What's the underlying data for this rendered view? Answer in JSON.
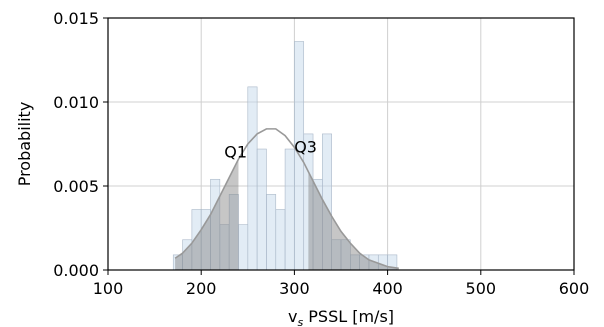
{
  "chart_data": {
    "type": "bar",
    "xlabel_main": "v",
    "xlabel_sub": "s",
    "xlabel_rest": " PSSL [m/s]",
    "ylabel": "Probability",
    "xlim": [
      100,
      600
    ],
    "ylim": [
      0,
      0.015
    ],
    "xticks": [
      100,
      200,
      300,
      400,
      500,
      600
    ],
    "xtick_labels": [
      "100",
      "200",
      "300",
      "400",
      "500",
      "600"
    ],
    "yticks": [
      0,
      0.005,
      0.01,
      0.015
    ],
    "ytick_labels": [
      "0.000",
      "0.005",
      "0.010",
      "0.015"
    ],
    "grid": true,
    "bin_width": 10,
    "histogram": {
      "bin_left_edges": [
        170,
        180,
        190,
        200,
        210,
        220,
        230,
        240,
        250,
        260,
        270,
        280,
        290,
        300,
        310,
        320,
        330,
        340,
        350,
        360,
        370,
        380,
        390,
        400
      ],
      "values": [
        0.0009,
        0.0018,
        0.0036,
        0.0036,
        0.0054,
        0.0027,
        0.0045,
        0.0027,
        0.0109,
        0.0072,
        0.0045,
        0.0036,
        0.0072,
        0.0136,
        0.0081,
        0.0054,
        0.0081,
        0.0018,
        0.0018,
        0.0009,
        0.0009,
        0.0009,
        0.0009,
        0.0009
      ],
      "color": "#c6d9ec"
    },
    "density_curve": {
      "x": [
        172,
        180,
        190,
        200,
        210,
        220,
        230,
        240,
        250,
        260,
        270,
        280,
        290,
        300,
        310,
        320,
        330,
        340,
        350,
        360,
        370,
        380,
        390,
        400,
        412
      ],
      "y": [
        0.0007,
        0.001,
        0.0016,
        0.0024,
        0.0033,
        0.0044,
        0.0055,
        0.0066,
        0.0075,
        0.0081,
        0.0084,
        0.0084,
        0.008,
        0.0073,
        0.0064,
        0.0053,
        0.0042,
        0.0032,
        0.0023,
        0.0016,
        0.001,
        0.0006,
        0.0004,
        0.0002,
        0.0001
      ],
      "color": "#999999"
    },
    "shaded_quartiles": {
      "lower_tail_end": 240,
      "upper_tail_start": 315,
      "color": "#808080"
    },
    "annotations": [
      {
        "text": "Q1",
        "x": 237,
        "y": 0.0067
      },
      {
        "text": "Q3",
        "x": 312,
        "y": 0.007
      }
    ]
  }
}
